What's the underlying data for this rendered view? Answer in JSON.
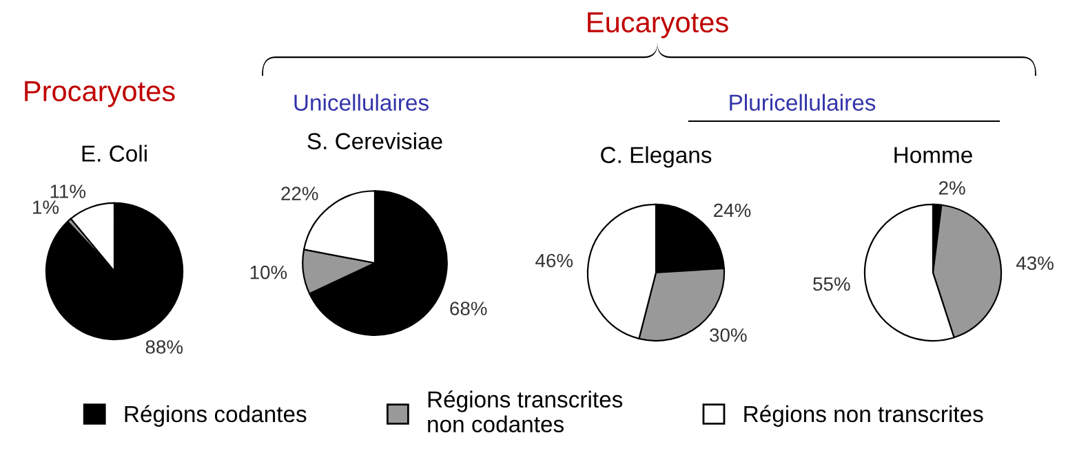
{
  "chart_data": [
    {
      "type": "pie",
      "title": "E. Coli",
      "annotations": [
        "Procaryotes"
      ],
      "categories": [
        "Régions codantes",
        "Régions transcrites\nnon codantes",
        "Régions non transcrites"
      ],
      "values": [
        88,
        1,
        11
      ],
      "colors": [
        "#000000",
        "#999999",
        "#ffffff"
      ],
      "value_labels": [
        "88%",
        "1%",
        "11%"
      ],
      "legend": "bottom"
    },
    {
      "type": "pie",
      "title": "S. Cerevisiae",
      "annotations": [
        "Eucaryotes",
        "Unicellulaires"
      ],
      "categories": [
        null,
        null,
        null
      ],
      "values": [
        68,
        10,
        22
      ],
      "colors": [
        "#000000",
        "#999999",
        "#ffffff"
      ],
      "value_labels": [
        "68%",
        "10%",
        "22%"
      ]
    },
    {
      "type": "pie",
      "title": "C. Elegans",
      "annotations": [
        "Pluricellulaires"
      ],
      "categories": [
        null,
        null,
        null
      ],
      "values": [
        24,
        30,
        46
      ],
      "colors": [
        "#000000",
        "#999999",
        "#ffffff"
      ],
      "value_labels": [
        "24%",
        "30%",
        "46%"
      ]
    },
    {
      "type": "pie",
      "title": "Homme",
      "categories": [
        null,
        null,
        null
      ],
      "values": [
        2,
        43,
        55
      ],
      "colors": [
        "#000000",
        "#999999",
        "#ffffff"
      ],
      "value_labels": [
        "2%",
        "43%",
        "55%"
      ]
    }
  ]
}
